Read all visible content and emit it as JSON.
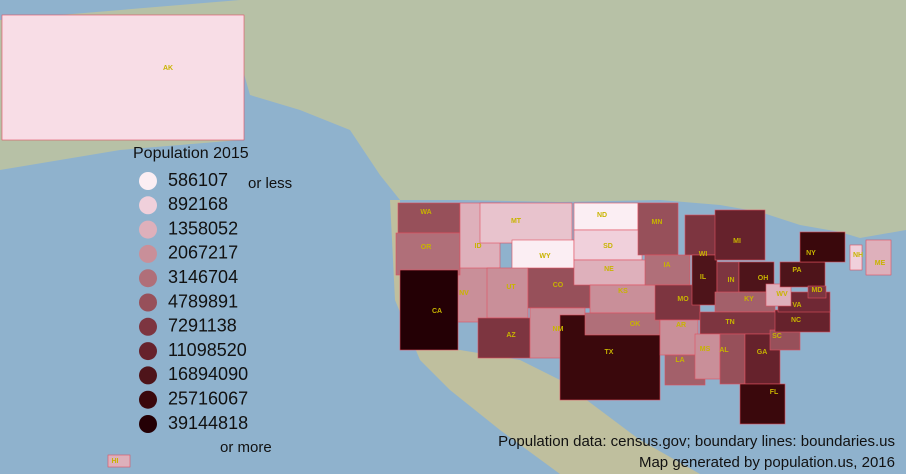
{
  "map": {
    "legend": {
      "title": "Population 2015",
      "items": [
        {
          "label": "586107",
          "color": "#fbeef3"
        },
        {
          "label": "892168",
          "color": "#f0d0db"
        },
        {
          "label": "1358052",
          "color": "#deb0bb"
        },
        {
          "label": "2067217",
          "color": "#c98f99"
        },
        {
          "label": "3146704",
          "color": "#b06f79"
        },
        {
          "label": "4789891",
          "color": "#97505a"
        },
        {
          "label": "7291138",
          "color": "#7d3540"
        },
        {
          "label": "11098520",
          "color": "#66222c"
        },
        {
          "label": "16894090",
          "color": "#4e141a"
        },
        {
          "label": "25716067",
          "color": "#3a080c"
        },
        {
          "label": "39144818",
          "color": "#240005"
        }
      ],
      "low_note": "or less",
      "high_note": "or more"
    },
    "states": [
      {
        "label": "AK",
        "color": "#f8dde6"
      },
      {
        "label": "HI",
        "color": "#deb0bb"
      },
      {
        "label": "NV",
        "color": "#c98f99"
      },
      {
        "label": "WA",
        "color": "#97505a"
      },
      {
        "label": "OR",
        "color": "#b06f79"
      },
      {
        "label": "CA",
        "color": "#240005"
      },
      {
        "label": "ID",
        "color": "#deb0bb"
      },
      {
        "label": "MT",
        "color": "#e8c3cd"
      },
      {
        "label": "WY",
        "color": "#fbeef3"
      },
      {
        "label": "UT",
        "color": "#c98f99"
      },
      {
        "label": "AZ",
        "color": "#7d3540"
      },
      {
        "label": "CO",
        "color": "#97505a"
      },
      {
        "label": "NM",
        "color": "#c98f99"
      },
      {
        "label": "TX",
        "color": "#3a080c"
      },
      {
        "label": "ND",
        "color": "#fbeef3"
      },
      {
        "label": "SD",
        "color": "#f0d0db"
      },
      {
        "label": "NE",
        "color": "#deb0bb"
      },
      {
        "label": "KS",
        "color": "#c98f99"
      },
      {
        "label": "OK",
        "color": "#b06f79"
      },
      {
        "label": "MN",
        "color": "#97505a"
      },
      {
        "label": "IA",
        "color": "#b06f79"
      },
      {
        "label": "MO",
        "color": "#7d3540"
      },
      {
        "label": "AR",
        "color": "#c98f99"
      },
      {
        "label": "LA",
        "color": "#a3606a"
      },
      {
        "label": "WI",
        "color": "#7d3540"
      },
      {
        "label": "IL",
        "color": "#4e141a"
      },
      {
        "label": "MI",
        "color": "#66222c"
      },
      {
        "label": "IN",
        "color": "#7d3540"
      },
      {
        "label": "OH",
        "color": "#4e141a"
      },
      {
        "label": "KY",
        "color": "#a3606a"
      },
      {
        "label": "TN",
        "color": "#7d3540"
      },
      {
        "label": "MS",
        "color": "#c98f99"
      },
      {
        "label": "AL",
        "color": "#97505a"
      },
      {
        "label": "GA",
        "color": "#66222c"
      },
      {
        "label": "FL",
        "color": "#3a080c"
      },
      {
        "label": "SC",
        "color": "#97505a"
      },
      {
        "label": "NC",
        "color": "#66222c"
      },
      {
        "label": "VA",
        "color": "#6f2834"
      },
      {
        "label": "WV",
        "color": "#deb0bb"
      },
      {
        "label": "PA",
        "color": "#4e141a"
      },
      {
        "label": "NY",
        "color": "#3a080c"
      },
      {
        "label": "MD",
        "color": "#7d3540"
      },
      {
        "label": "NH",
        "color": "#f0d0db"
      },
      {
        "label": "ME",
        "color": "#deb0bb"
      }
    ],
    "credits": [
      "Population data: census.gov; boundary lines: boundaries.us",
      "Map generated by population.us, 2016"
    ]
  }
}
